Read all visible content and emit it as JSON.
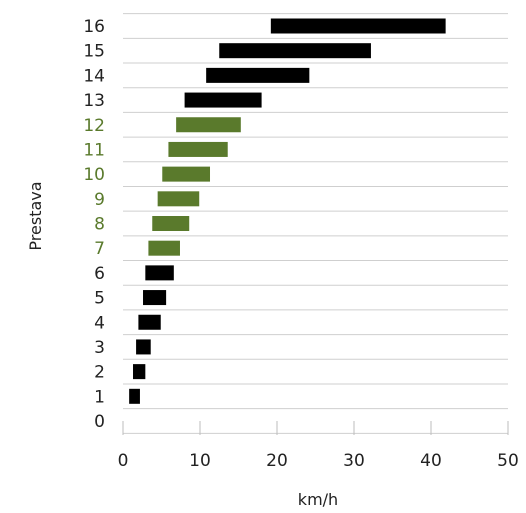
{
  "chart_data": {
    "type": "bar",
    "orientation": "horizontal-range",
    "xlabel": "km/h",
    "ylabel": "Prestava",
    "xlim": [
      0,
      50
    ],
    "xticks": [
      0,
      10,
      20,
      30,
      40,
      50
    ],
    "categories": [
      "0",
      "1",
      "2",
      "3",
      "4",
      "5",
      "6",
      "7",
      "8",
      "9",
      "10",
      "11",
      "12",
      "13",
      "14",
      "15",
      "16"
    ],
    "ranges": [
      null,
      [
        0.8,
        2.2
      ],
      [
        1.3,
        2.9
      ],
      [
        1.7,
        3.6
      ],
      [
        2.0,
        4.9
      ],
      [
        2.6,
        5.6
      ],
      [
        2.9,
        6.6
      ],
      [
        3.3,
        7.4
      ],
      [
        3.8,
        8.6
      ],
      [
        4.5,
        9.9
      ],
      [
        5.1,
        11.3
      ],
      [
        5.9,
        13.6
      ],
      [
        6.9,
        15.3
      ],
      [
        8.0,
        18.0
      ],
      [
        10.8,
        24.2
      ],
      [
        12.5,
        32.2
      ],
      [
        19.2,
        41.9
      ]
    ],
    "bar_colors": [
      "#000000",
      "#000000",
      "#000000",
      "#000000",
      "#000000",
      "#000000",
      "#000000",
      "#5a7a2c",
      "#5a7a2c",
      "#5a7a2c",
      "#5a7a2c",
      "#5a7a2c",
      "#5a7a2c",
      "#000000",
      "#000000",
      "#000000",
      "#000000"
    ],
    "label_colors": [
      "#222222",
      "#222222",
      "#222222",
      "#222222",
      "#222222",
      "#222222",
      "#222222",
      "#5a7a2c",
      "#5a7a2c",
      "#5a7a2c",
      "#5a7a2c",
      "#5a7a2c",
      "#5a7a2c",
      "#222222",
      "#222222",
      "#222222",
      "#222222"
    ],
    "grid": true
  }
}
